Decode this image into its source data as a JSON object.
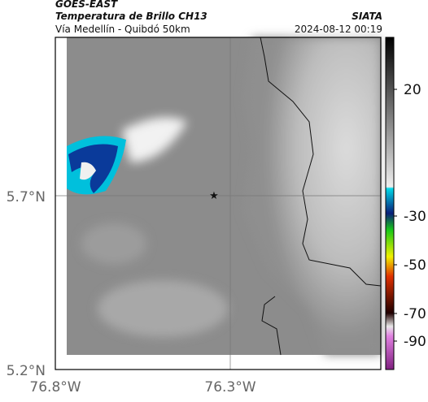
{
  "header": {
    "source": "GOES-EAST",
    "title": "Temperatura de Brillo CH13",
    "org": "SIATA",
    "route": "Vía Medellín - Quibdó 50km",
    "datetime": "2024-08-12 00:19"
  },
  "map": {
    "yticks": [
      "5.7°N",
      "5.2°N"
    ],
    "xticks": [
      "76.8°W",
      "76.3°W"
    ]
  },
  "colorbar": {
    "ticks": [
      20,
      -30,
      -50,
      -70,
      -90
    ]
  }
}
